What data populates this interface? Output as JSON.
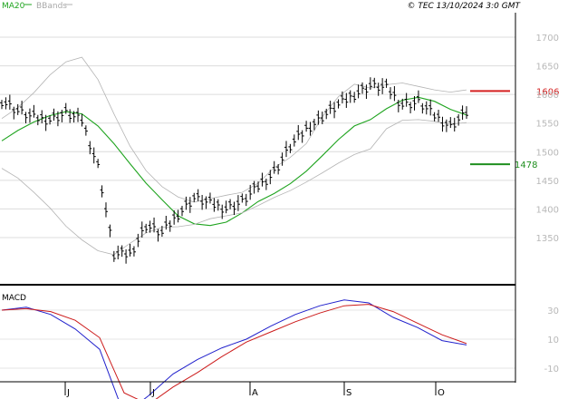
{
  "header": {
    "legend": [
      {
        "label": "MA20",
        "color": "#1fa41f"
      },
      {
        "label": "BBands",
        "color": "#a0a0a0"
      }
    ],
    "copyright": "© TEC 13/10/2024 3:0 GMT"
  },
  "price_panel": {
    "y_ticks": [
      "1700",
      "1650",
      "1600",
      "1550",
      "1500",
      "1450",
      "1400",
      "1350"
    ],
    "resistance": {
      "label": "1606",
      "value": 1606,
      "color": "#d42020"
    },
    "support": {
      "label": "1478",
      "value": 1478,
      "color": "#1f8f1f"
    }
  },
  "macd_panel": {
    "label": "MACD",
    "y_ticks": [
      "30",
      "10",
      "-10"
    ]
  },
  "x_axis": {
    "labels": [
      "J",
      "J",
      "A",
      "S",
      "O"
    ]
  },
  "chart_data": [
    {
      "type": "line",
      "title": "",
      "xlabel": "",
      "ylabel": "",
      "x_labels": [
        "J",
        "J",
        "A",
        "S",
        "O"
      ],
      "ylim": [
        1300,
        1740
      ],
      "grid": true,
      "legend_position": "top-left",
      "y_ticks": [
        1700,
        1650,
        1600,
        1550,
        1500,
        1450,
        1400,
        1350
      ],
      "series": [
        {
          "name": "MA20",
          "color": "#1fa41f",
          "values": [
            1519,
            1537,
            1552,
            1563,
            1570,
            1566,
            1545,
            1514,
            1479,
            1445,
            1416,
            1388,
            1374,
            1371,
            1377,
            1393,
            1413,
            1427,
            1444,
            1466,
            1493,
            1521,
            1545,
            1556,
            1575,
            1590,
            1595,
            1588,
            1574,
            1564
          ]
        },
        {
          "name": "BBands upper",
          "color": "#b4b4b4",
          "values": [
            1558,
            1577,
            1603,
            1634,
            1657,
            1665,
            1626,
            1566,
            1510,
            1467,
            1439,
            1421,
            1412,
            1418,
            1424,
            1429,
            1445,
            1472,
            1490,
            1514,
            1561,
            1596,
            1618,
            1611,
            1617,
            1620,
            1614,
            1608,
            1604,
            1608
          ]
        },
        {
          "name": "BBands lower",
          "color": "#b4b4b4",
          "values": [
            1471,
            1454,
            1429,
            1402,
            1370,
            1346,
            1327,
            1320,
            1340,
            1358,
            1368,
            1369,
            1373,
            1383,
            1388,
            1393,
            1406,
            1420,
            1432,
            1447,
            1463,
            1480,
            1495,
            1505,
            1540,
            1555,
            1556,
            1553,
            1548,
            1551
          ]
        },
        {
          "name": "Price",
          "color": "#000000",
          "values": [
            1590,
            1572,
            1560,
            1557,
            1568,
            1555,
            1475,
            1320,
            1322,
            1372,
            1358,
            1392,
            1420,
            1410,
            1402,
            1413,
            1440,
            1465,
            1510,
            1540,
            1562,
            1582,
            1601,
            1616,
            1612,
            1583,
            1587,
            1564,
            1545,
            1570
          ]
        }
      ]
    },
    {
      "type": "line",
      "title": "",
      "xlabel": "",
      "ylabel": "",
      "ylim": [
        -40,
        45
      ],
      "y_ticks": [
        30,
        10,
        -10
      ],
      "series": [
        {
          "name": "",
          "color": "#2020cc",
          "values": [
            30,
            32,
            27,
            17,
            3,
            -42,
            -29,
            -14,
            -4,
            4,
            10,
            19,
            27,
            33,
            37,
            35,
            25,
            18,
            9,
            6
          ]
        },
        {
          "name": "",
          "color": "#cc1a1a",
          "values": [
            30,
            31,
            29,
            23,
            11,
            -27,
            -35,
            -23,
            -13,
            -2,
            8,
            15,
            22,
            28,
            33,
            34,
            29,
            21,
            13,
            7
          ]
        }
      ]
    }
  ]
}
